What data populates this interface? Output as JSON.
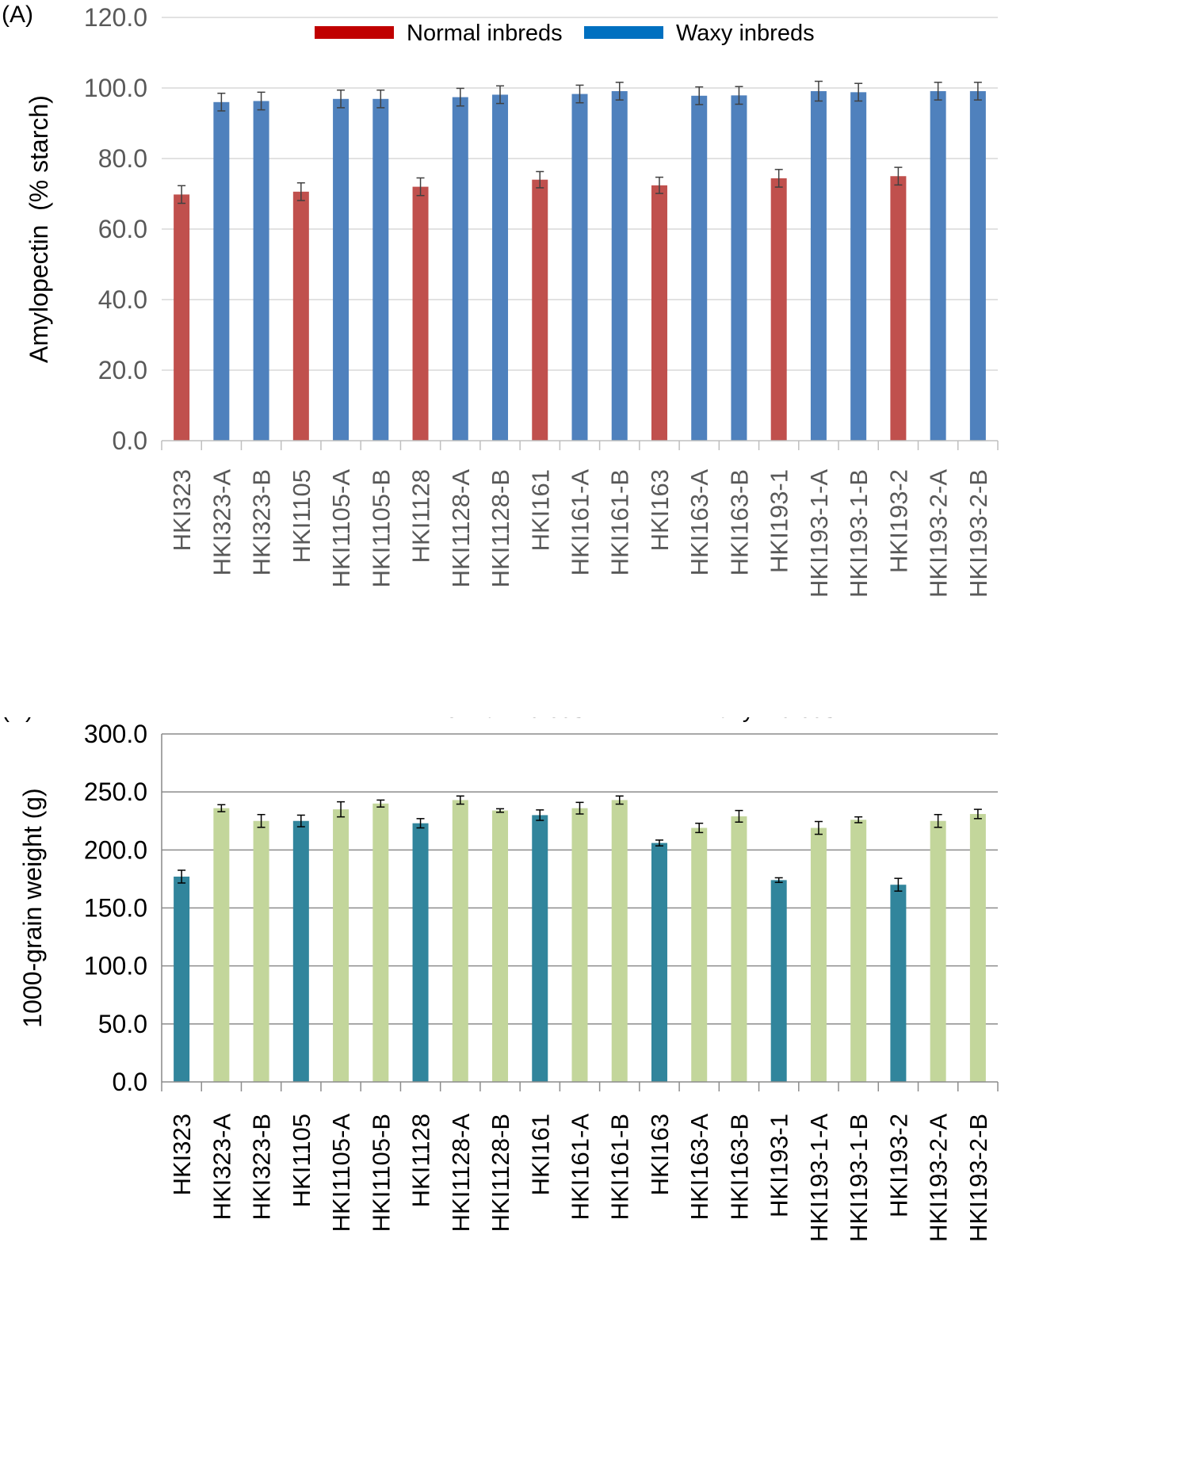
{
  "chart_data": [
    {
      "type": "bar",
      "panel_label": "(A)",
      "title": "",
      "xlabel": "",
      "ylabel": "Amylopectin  (% starch)",
      "ylim": [
        0,
        120
      ],
      "yticks": [
        "0.0",
        "20.0",
        "40.0",
        "60.0",
        "80.0",
        "100.0",
        "120.0"
      ],
      "grid": true,
      "legend_position": "top-center",
      "legend": [
        {
          "label": "Normal inbreds",
          "color": "#c0504d",
          "swatch_color": "#c00000"
        },
        {
          "label": "Waxy inbreds",
          "color": "#4f81bd",
          "swatch_color": "#0070c0"
        }
      ],
      "categories": [
        "HKI323",
        "HKI323-A",
        "HKI323-B",
        "HKI1105",
        "HKI1105-A",
        "HKI1105-B",
        "HKI1128",
        "HKI1128-A",
        "HKI1128-B",
        "HKI161",
        "HKI161-A",
        "HKI161-B",
        "HKI163",
        "HKI163-A",
        "HKI163-B",
        "HKI193-1",
        "HKI193-1-A",
        "HKI193-1-B",
        "HKI193-2",
        "HKI193-2-A",
        "HKI193-2-B"
      ],
      "groups": [
        "normal",
        "waxy",
        "waxy",
        "normal",
        "waxy",
        "waxy",
        "normal",
        "waxy",
        "waxy",
        "normal",
        "waxy",
        "waxy",
        "normal",
        "waxy",
        "waxy",
        "normal",
        "waxy",
        "waxy",
        "normal",
        "waxy",
        "waxy"
      ],
      "values": [
        69.8,
        96.0,
        96.3,
        70.6,
        96.9,
        96.9,
        72.0,
        97.4,
        98.1,
        74.0,
        98.3,
        99.1,
        72.4,
        97.8,
        97.9,
        74.4,
        99.1,
        98.8,
        75.0,
        99.1,
        99.1
      ],
      "errors": [
        2.5,
        2.5,
        2.5,
        2.5,
        2.5,
        2.5,
        2.5,
        2.5,
        2.5,
        2.3,
        2.5,
        2.5,
        2.3,
        2.5,
        2.5,
        2.5,
        2.8,
        2.5,
        2.5,
        2.5,
        2.5
      ]
    },
    {
      "type": "bar",
      "panel_label": "(B)",
      "title": "",
      "xlabel": "",
      "ylabel": "1000-grain weight (g)",
      "ylim": [
        0,
        300
      ],
      "yticks": [
        "0.0",
        "50.0",
        "100.0",
        "150.0",
        "200.0",
        "250.0",
        "300.0"
      ],
      "grid": true,
      "legend_position": "top-center",
      "legend": [
        {
          "label": "Normal inbreds",
          "color": "#31859c",
          "swatch_color": "#31859c"
        },
        {
          "label": "Waxy inbreds",
          "color": "#c3d69b",
          "swatch_color": "#c3d69b"
        }
      ],
      "categories": [
        "HKI323",
        "HKI323-A",
        "HKI323-B",
        "HKI1105",
        "HKI1105-A",
        "HKI1105-B",
        "HKI1128",
        "HKI1128-A",
        "HKI1128-B",
        "HKI161",
        "HKI161-A",
        "HKI161-B",
        "HKI163",
        "HKI163-A",
        "HKI163-B",
        "HKI193-1",
        "HKI193-1-A",
        "HKI193-1-B",
        "HKI193-2",
        "HKI193-2-A",
        "HKI193-2-B"
      ],
      "groups": [
        "normal",
        "waxy",
        "waxy",
        "normal",
        "waxy",
        "waxy",
        "normal",
        "waxy",
        "waxy",
        "normal",
        "waxy",
        "waxy",
        "normal",
        "waxy",
        "waxy",
        "normal",
        "waxy",
        "waxy",
        "normal",
        "waxy",
        "waxy"
      ],
      "values": [
        177,
        236,
        225,
        225,
        235,
        240,
        223,
        243,
        234,
        230,
        236,
        243,
        206,
        219,
        229,
        174,
        219,
        226,
        170,
        225,
        231
      ],
      "errors": [
        5.5,
        3.0,
        5.5,
        5.0,
        6.5,
        3.0,
        4.0,
        3.5,
        1.5,
        4.5,
        5.0,
        3.5,
        2.5,
        4.0,
        5.0,
        2.0,
        5.5,
        2.5,
        5.5,
        5.5,
        4.0
      ]
    }
  ]
}
